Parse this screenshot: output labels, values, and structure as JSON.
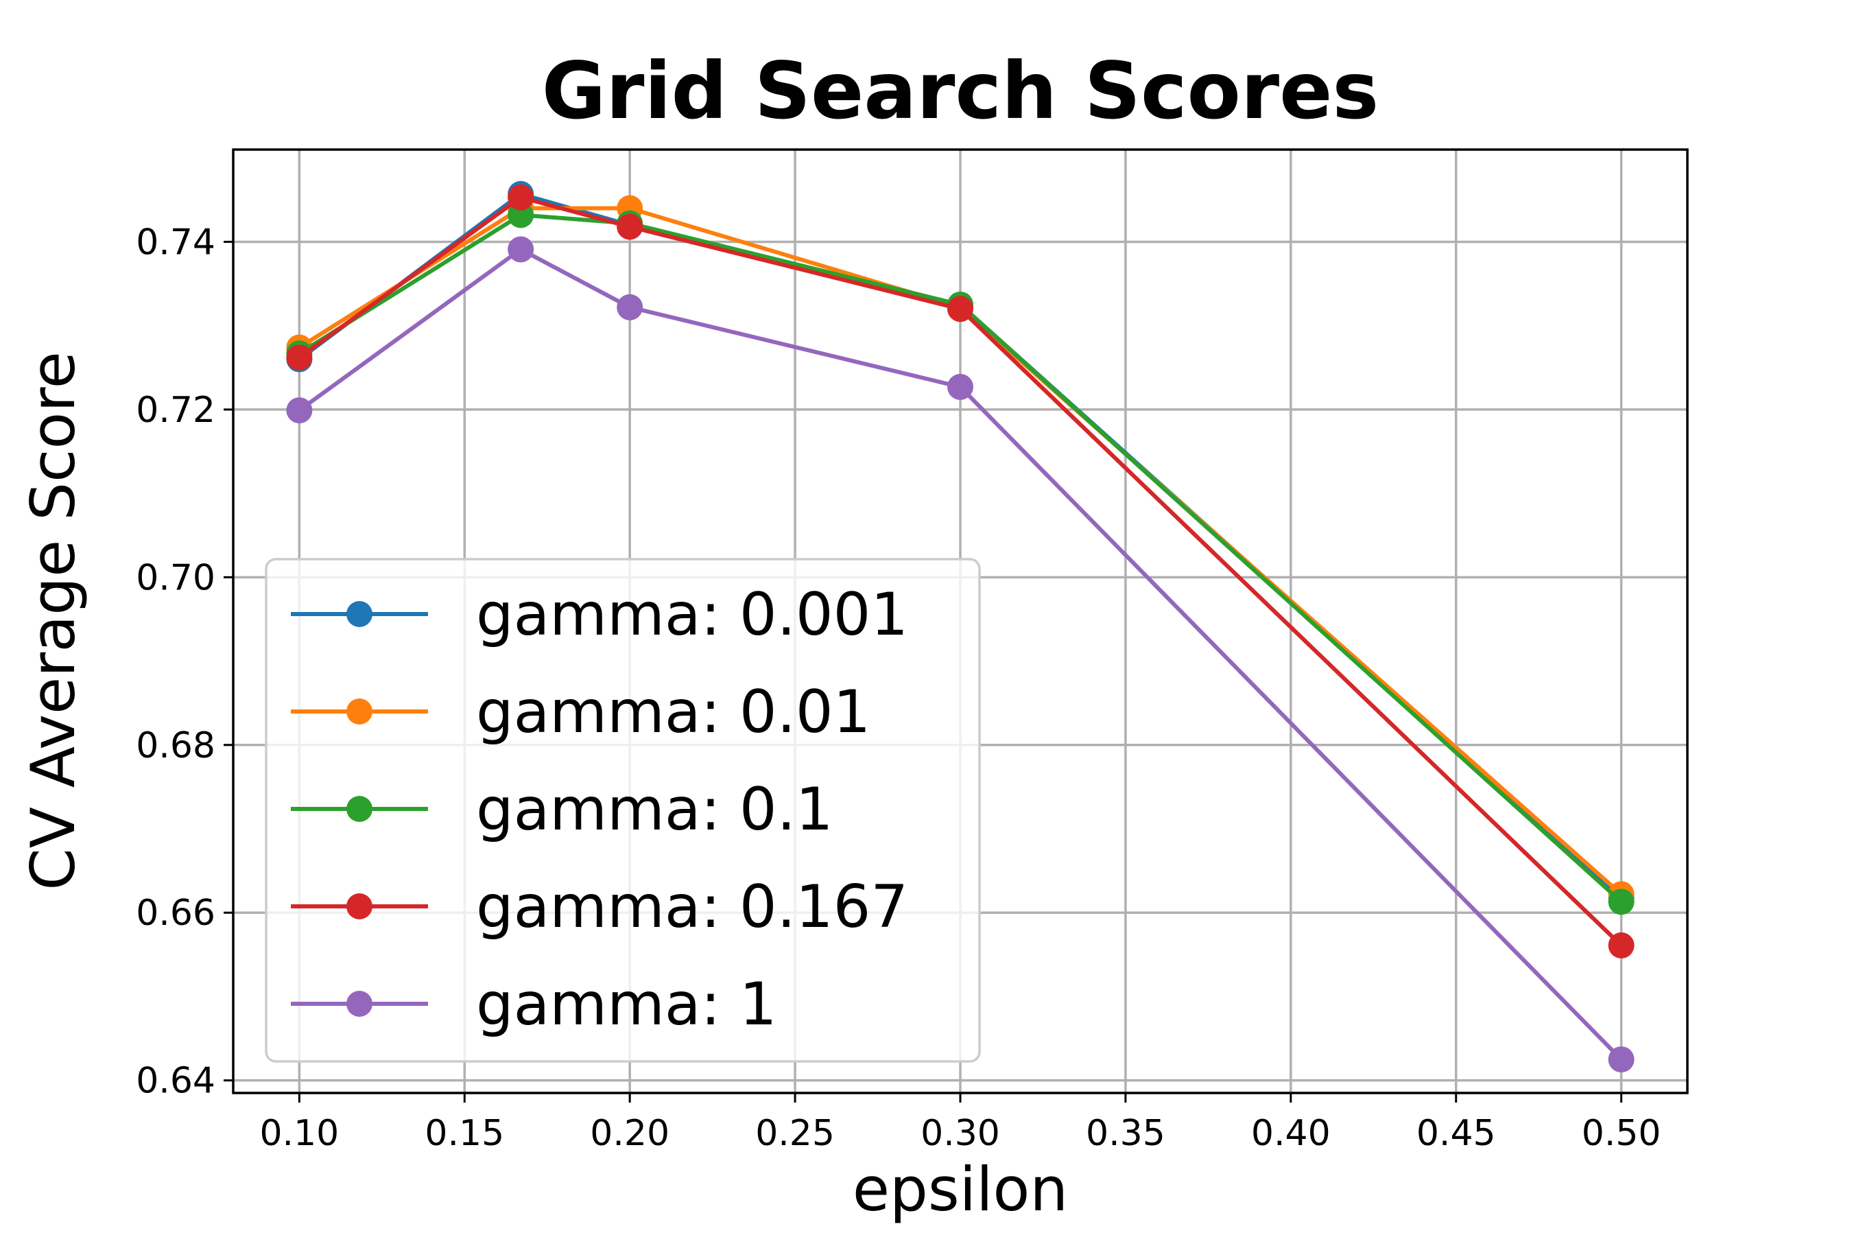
{
  "chart_data": {
    "type": "line",
    "title": "Grid Search Scores",
    "xlabel": "epsilon",
    "ylabel": "CV Average Score",
    "x": [
      0.1,
      0.167,
      0.2,
      0.3,
      0.5
    ],
    "xlim": [
      0.08,
      0.52
    ],
    "ylim": [
      0.6385,
      0.751
    ],
    "x_ticks": [
      0.1,
      0.15,
      0.2,
      0.25,
      0.3,
      0.35,
      0.4,
      0.45,
      0.5
    ],
    "x_tick_labels": [
      "0.10",
      "0.15",
      "0.20",
      "0.25",
      "0.30",
      "0.35",
      "0.40",
      "0.45",
      "0.50"
    ],
    "y_ticks": [
      0.64,
      0.66,
      0.68,
      0.7,
      0.72,
      0.74
    ],
    "y_tick_labels": [
      "0.64",
      "0.66",
      "0.68",
      "0.70",
      "0.72",
      "0.74"
    ],
    "grid": true,
    "legend_position": "lower-left",
    "series": [
      {
        "name": "gamma: 0.001",
        "color": "#1f77b4",
        "values": [
          0.726,
          0.7457,
          0.742,
          0.7325,
          0.6618
        ]
      },
      {
        "name": "gamma: 0.01",
        "color": "#ff7f0e",
        "values": [
          0.7274,
          0.744,
          0.744,
          0.7322,
          0.6622
        ]
      },
      {
        "name": "gamma: 0.1",
        "color": "#2ca02c",
        "values": [
          0.7267,
          0.7432,
          0.7422,
          0.7325,
          0.6613
        ]
      },
      {
        "name": "gamma: 0.167",
        "color": "#d62728",
        "values": [
          0.7262,
          0.7453,
          0.7418,
          0.732,
          0.6561
        ]
      },
      {
        "name": "gamma: 1",
        "color": "#9467bd",
        "values": [
          0.7199,
          0.7391,
          0.7322,
          0.7227,
          0.6425
        ]
      }
    ]
  }
}
